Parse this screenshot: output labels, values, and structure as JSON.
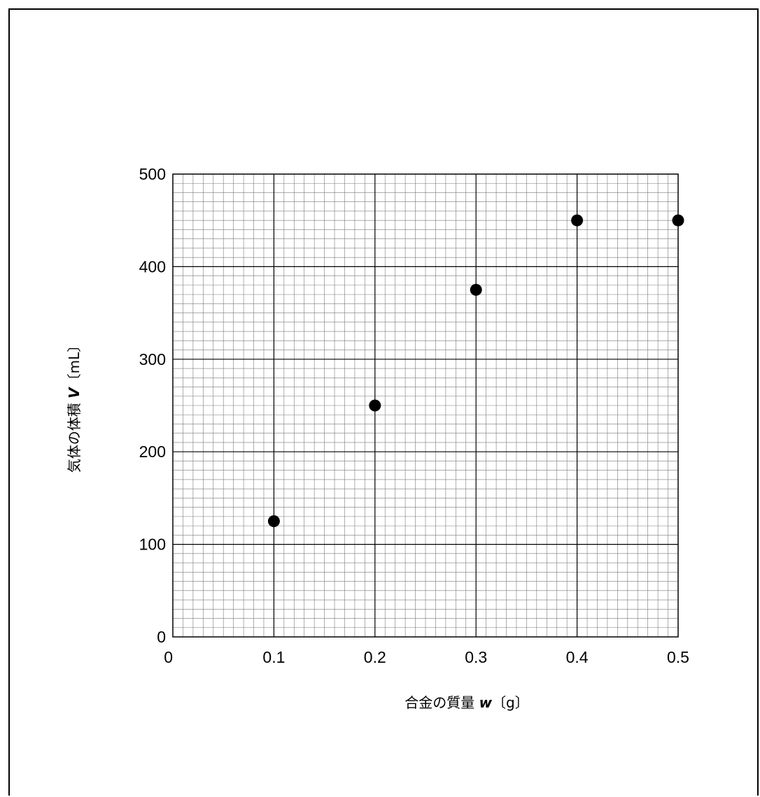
{
  "chart_data": {
    "type": "scatter",
    "x": [
      0.1,
      0.2,
      0.3,
      0.4,
      0.5
    ],
    "y": [
      125,
      250,
      375,
      450,
      450
    ],
    "xlabel": {
      "prefix": "合金の質量 ",
      "variable": "w",
      "unit": "〔g〕"
    },
    "ylabel": {
      "prefix": "気体の体積 ",
      "variable": "V",
      "unit": "〔mL〕"
    },
    "xlim": [
      0,
      0.5
    ],
    "ylim": [
      0,
      500
    ],
    "xticks": [
      "0",
      "0.1",
      "0.2",
      "0.3",
      "0.4",
      "0.5"
    ],
    "yticks": [
      "0",
      "100",
      "200",
      "300",
      "400",
      "500"
    ],
    "grid": true,
    "marker_color": "#000000"
  }
}
